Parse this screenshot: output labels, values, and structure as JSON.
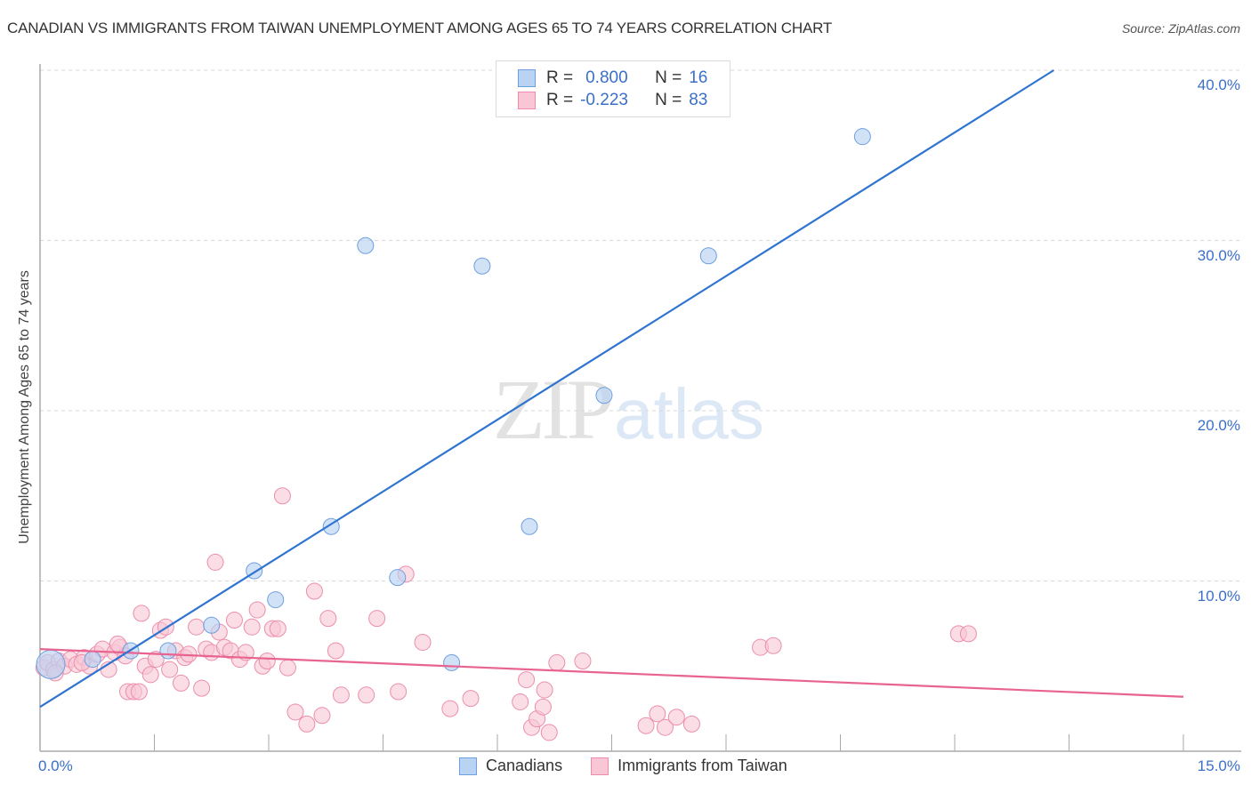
{
  "header": {
    "title": "CANADIAN VS IMMIGRANTS FROM TAIWAN UNEMPLOYMENT AMONG AGES 65 TO 74 YEARS CORRELATION CHART",
    "source": "Source: ZipAtlas.com"
  },
  "watermark": {
    "zip": "ZIP",
    "atlas": "atlas"
  },
  "legend": {
    "rows": [
      {
        "series": "Canadians",
        "r_label": "R =",
        "r_value": "0.800",
        "n_label": "N =",
        "n_value": "16"
      },
      {
        "series": "Immigrants from Taiwan",
        "r_label": "R =",
        "r_value": "-0.223",
        "n_label": "N =",
        "n_value": "83"
      }
    ]
  },
  "bottom_legend": {
    "items": [
      "Canadians",
      "Immigrants from Taiwan"
    ]
  },
  "axes": {
    "y_ticks": [
      "40.0%",
      "30.0%",
      "20.0%",
      "10.0%"
    ],
    "x_ticks": [
      "0.0%",
      "15.0%"
    ]
  },
  "colors": {
    "blue_fill": "#b9d3f3",
    "blue_stroke": "#6e9fdf",
    "blue_line": "#2f74d0",
    "pink_fill": "#f9c6d5",
    "pink_stroke": "#ec8eab",
    "pink_line": "#e8638f",
    "tick_text": "#3b6fc7",
    "grid": "#d8d8d8"
  },
  "chart_data": {
    "type": "scatter",
    "title": "CANADIAN VS IMMIGRANTS FROM TAIWAN UNEMPLOYMENT AMONG AGES 65 TO 74 YEARS CORRELATION CHART",
    "xlabel": "",
    "ylabel": "Unemployment Among Ages 65 to 74 years",
    "xlim": [
      0,
      15
    ],
    "ylim": [
      0,
      41
    ],
    "x_tick_labels": [
      "0.0%",
      "15.0%"
    ],
    "y_tick_labels": [
      "10.0%",
      "20.0%",
      "30.0%",
      "40.0%"
    ],
    "grid": "horizontal dashed",
    "legend_position": "top-center and bottom",
    "series": [
      {
        "name": "Canadians",
        "R": 0.8,
        "N": 16,
        "trend": {
          "x": [
            0,
            13.3
          ],
          "y": [
            2.6,
            40.0
          ]
        },
        "points": [
          [
            0.14,
            5.1
          ],
          [
            0.69,
            5.4
          ],
          [
            1.19,
            5.9
          ],
          [
            1.68,
            5.9
          ],
          [
            2.25,
            7.4
          ],
          [
            2.81,
            10.6
          ],
          [
            3.09,
            8.9
          ],
          [
            3.82,
            13.2
          ],
          [
            4.27,
            29.7
          ],
          [
            4.69,
            10.2
          ],
          [
            5.4,
            5.2
          ],
          [
            5.8,
            28.5
          ],
          [
            6.42,
            13.2
          ],
          [
            7.4,
            20.9
          ],
          [
            8.77,
            29.1
          ],
          [
            10.79,
            36.1
          ]
        ]
      },
      {
        "name": "Immigrants from Taiwan",
        "R": -0.223,
        "N": 83,
        "trend": {
          "x": [
            0,
            15
          ],
          "y": [
            6.0,
            3.2
          ]
        },
        "points": [
          [
            0.05,
            4.9
          ],
          [
            0.1,
            5.2
          ],
          [
            0.18,
            4.8
          ],
          [
            0.25,
            5.3
          ],
          [
            0.32,
            5.0
          ],
          [
            0.4,
            5.4
          ],
          [
            0.48,
            5.1
          ],
          [
            0.58,
            5.5
          ],
          [
            0.65,
            5.0
          ],
          [
            0.75,
            5.7
          ],
          [
            0.82,
            6.0
          ],
          [
            0.9,
            4.8
          ],
          [
            0.98,
            5.8
          ],
          [
            1.05,
            6.1
          ],
          [
            1.12,
            5.6
          ],
          [
            1.02,
            6.3
          ],
          [
            1.15,
            3.5
          ],
          [
            1.23,
            3.5
          ],
          [
            1.3,
            3.5
          ],
          [
            1.33,
            8.1
          ],
          [
            1.38,
            5.0
          ],
          [
            1.45,
            4.5
          ],
          [
            1.52,
            5.4
          ],
          [
            1.58,
            7.1
          ],
          [
            1.65,
            7.3
          ],
          [
            1.7,
            4.8
          ],
          [
            1.78,
            5.9
          ],
          [
            1.85,
            4.0
          ],
          [
            1.9,
            5.5
          ],
          [
            1.95,
            5.7
          ],
          [
            2.05,
            7.3
          ],
          [
            2.12,
            3.7
          ],
          [
            2.18,
            6.0
          ],
          [
            2.25,
            5.8
          ],
          [
            2.3,
            11.1
          ],
          [
            2.35,
            7.0
          ],
          [
            2.42,
            6.1
          ],
          [
            2.5,
            5.9
          ],
          [
            2.55,
            7.7
          ],
          [
            2.62,
            5.4
          ],
          [
            2.7,
            5.8
          ],
          [
            2.78,
            7.3
          ],
          [
            2.85,
            8.3
          ],
          [
            2.92,
            5.0
          ],
          [
            2.98,
            5.3
          ],
          [
            3.05,
            7.2
          ],
          [
            3.12,
            7.2
          ],
          [
            3.18,
            15.0
          ],
          [
            3.25,
            4.9
          ],
          [
            3.35,
            2.3
          ],
          [
            3.5,
            1.6
          ],
          [
            3.6,
            9.4
          ],
          [
            3.7,
            2.1
          ],
          [
            3.78,
            7.8
          ],
          [
            3.88,
            5.9
          ],
          [
            3.95,
            3.3
          ],
          [
            4.28,
            3.3
          ],
          [
            4.42,
            7.8
          ],
          [
            4.7,
            3.5
          ],
          [
            4.8,
            10.4
          ],
          [
            5.02,
            6.4
          ],
          [
            5.38,
            2.5
          ],
          [
            5.65,
            3.1
          ],
          [
            6.3,
            2.9
          ],
          [
            6.38,
            4.2
          ],
          [
            6.45,
            1.4
          ],
          [
            6.52,
            1.9
          ],
          [
            6.6,
            2.6
          ],
          [
            6.68,
            1.1
          ],
          [
            6.62,
            3.6
          ],
          [
            6.78,
            5.2
          ],
          [
            7.12,
            5.3
          ],
          [
            7.95,
            1.5
          ],
          [
            8.1,
            2.2
          ],
          [
            8.2,
            1.4
          ],
          [
            8.35,
            2.0
          ],
          [
            8.55,
            1.6
          ],
          [
            9.45,
            6.1
          ],
          [
            9.62,
            6.2
          ],
          [
            12.05,
            6.9
          ],
          [
            12.18,
            6.9
          ],
          [
            0.2,
            4.6
          ],
          [
            0.55,
            5.2
          ]
        ]
      }
    ]
  }
}
